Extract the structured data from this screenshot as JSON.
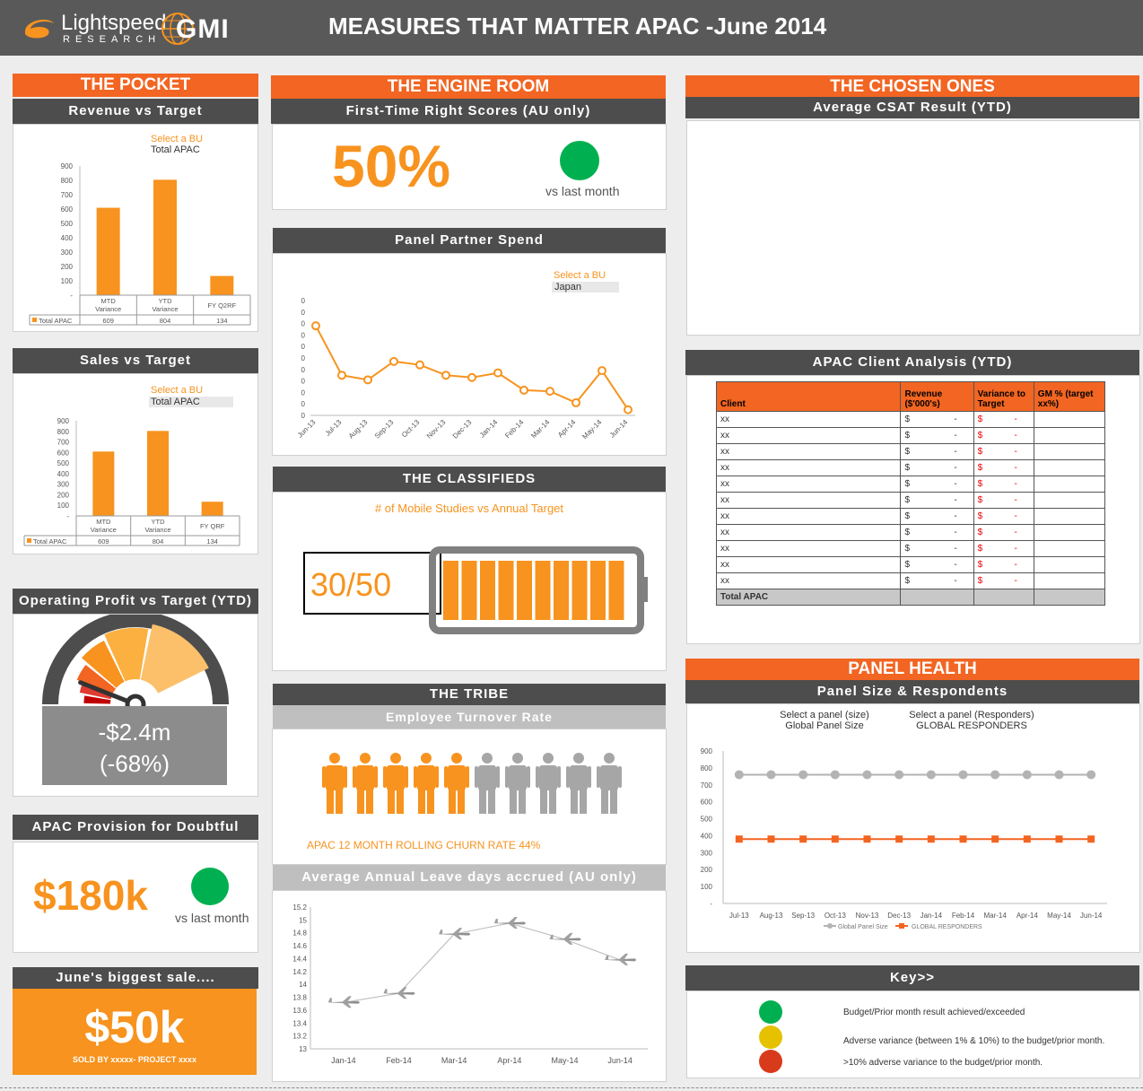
{
  "header": {
    "logo_name": "Lightspeed",
    "logo_sub": "RESEARCH",
    "logo_gmi": "GMI",
    "title": "MEASURES THAT MATTER APAC -June 2014"
  },
  "colors": {
    "orange": "#f7931e",
    "section": "#f26522",
    "dark": "#4d4d4d",
    "green": "#00b050",
    "yellow": "#e5c100",
    "red": "#d83b1c"
  },
  "pocket": {
    "section_title": "THE POCKET",
    "revenue": {
      "title": "Revenue vs Target",
      "select_label": "Select a BU",
      "select_value": "Total APAC",
      "legend": "Total APAC",
      "chart_data": {
        "type": "bar",
        "categories": [
          "MTD Variance",
          "YTD Variance",
          "FY Q2RF"
        ],
        "values": [
          609,
          804,
          134
        ],
        "ylim": [
          0,
          900
        ],
        "yticks": [
          "900",
          "800",
          "700",
          "600",
          "500",
          "400",
          "300",
          "200",
          "100",
          "-"
        ]
      }
    },
    "sales": {
      "title": "Sales vs Target",
      "select_label": "Select a BU",
      "select_value": "Total APAC",
      "legend": "Total APAC",
      "chart_data": {
        "type": "bar",
        "categories": [
          "MTD Variance",
          "YTD Variance",
          "FY QRF"
        ],
        "values": [
          609,
          804,
          134
        ],
        "ylim": [
          0,
          900
        ],
        "yticks": [
          "900",
          "800",
          "700",
          "600",
          "500",
          "400",
          "300",
          "200",
          "100",
          "-"
        ]
      }
    },
    "profit": {
      "title": "Operating Profit vs Target (YTD)",
      "value": "-$2.4m",
      "pct": "(-68%)",
      "gauge_level": 0.12
    },
    "provision": {
      "title": "APAC Provision for Doubtful",
      "value": "$180k",
      "status_label": "vs last month",
      "status": "green"
    },
    "biggest_sale": {
      "title": "June's biggest sale....",
      "value": "$50k",
      "sub": "SOLD BY xxxxx- PROJECT xxxx"
    }
  },
  "engine": {
    "section_title": "THE ENGINE ROOM",
    "ftr": {
      "title": "First-Time Right Scores (AU only)",
      "value": "50%",
      "status_label": "vs last month",
      "status": "green"
    },
    "spend": {
      "title": "Panel Partner Spend",
      "select_label": "Select a BU",
      "select_value": "Japan",
      "chart_data": {
        "type": "line",
        "categories": [
          "Jun-13",
          "Jul-13",
          "Aug-13",
          "Sep-13",
          "Oct-13",
          "Nov-13",
          "Dec-13",
          "Jan-14",
          "Feb-14",
          "Mar-14",
          "Apr-14",
          "May-14",
          "Jun-14"
        ],
        "values": [
          7.8,
          3.5,
          3.1,
          4.7,
          4.4,
          3.5,
          3.3,
          3.7,
          2.2,
          2.1,
          1.1,
          3.9,
          0.5
        ],
        "ylim": [
          0,
          10
        ],
        "yticks": [
          "0",
          "0",
          "0",
          "0",
          "0",
          "0",
          "0",
          "0",
          "0",
          "0",
          "0"
        ]
      }
    },
    "classifieds": {
      "title": "THE CLASSIFIEDS",
      "subtitle": "# of Mobile Studies vs Annual Target",
      "value": "30/50",
      "level": 0.6
    },
    "tribe": {
      "title": "THE TRIBE",
      "turnover_title": "Employee Turnover Rate",
      "churn_label": "APAC 12 MONTH ROLLING CHURN RATE 44%",
      "churn_level": 0.44,
      "people_count": 10,
      "leave_title": "Average Annual Leave days accrued (AU only)",
      "chart_data": {
        "type": "line",
        "categories": [
          "Jan-14",
          "Feb-14",
          "Mar-14",
          "Apr-14",
          "May-14",
          "Jun-14"
        ],
        "values": [
          13.72,
          13.86,
          14.78,
          14.95,
          14.7,
          14.38
        ],
        "ylim": [
          13,
          15.2
        ],
        "yticks": [
          "15.2",
          "15",
          "14.8",
          "14.6",
          "14.4",
          "14.2",
          "14",
          "13.8",
          "13.6",
          "13.4",
          "13.2",
          "13"
        ]
      }
    }
  },
  "chosen": {
    "section_title": "THE CHOSEN ONES",
    "csat_title": "Average CSAT Result (YTD)",
    "client_title": "APAC Client Analysis (YTD)",
    "table": {
      "headers": [
        "Client",
        "Revenue ($'000's)",
        "Variance to Target",
        "GM % (target xx%)"
      ],
      "rows": [
        [
          "xx",
          "$",
          "-",
          "$",
          "-"
        ],
        [
          "xx",
          "$",
          "-",
          "$",
          "-"
        ],
        [
          "xx",
          "$",
          "-",
          "$",
          "-"
        ],
        [
          "xx",
          "$",
          "-",
          "$",
          "-"
        ],
        [
          "xx",
          "$",
          "-",
          "$",
          "-"
        ],
        [
          "xx",
          "$",
          "-",
          "$",
          "-"
        ],
        [
          "xx",
          "$",
          "-",
          "$",
          "-"
        ],
        [
          "xx",
          "$",
          "-",
          "$",
          "-"
        ],
        [
          "xx",
          "$",
          "-",
          "$",
          "-"
        ],
        [
          "xx",
          "$",
          "-",
          "$",
          "-"
        ],
        [
          "xx",
          "$",
          "-",
          "$",
          "-"
        ]
      ],
      "total_label": "Total APAC"
    }
  },
  "panel_health": {
    "section_title": "PANEL HEALTH",
    "title": "Panel Size & Respondents",
    "select1_label": "Select a panel (size)",
    "select1_value": "Global Panel Size",
    "select2_label": "Select a panel (Responders)",
    "select2_value": "GLOBAL RESPONDERS",
    "chart_data": {
      "type": "line",
      "categories": [
        "Jul-13",
        "Aug-13",
        "Sep-13",
        "Oct-13",
        "Nov-13",
        "Dec-13",
        "Jan-14",
        "Feb-14",
        "Mar-14",
        "Apr-14",
        "May-14",
        "Jun-14"
      ],
      "series": [
        {
          "name": "Global Panel Size",
          "values": [
            760,
            760,
            760,
            760,
            760,
            760,
            760,
            760,
            760,
            760,
            760,
            760
          ]
        },
        {
          "name": "GLOBAL RESPONDERS",
          "values": [
            380,
            380,
            380,
            380,
            380,
            380,
            380,
            380,
            380,
            380,
            380,
            380
          ]
        }
      ],
      "ylim": [
        0,
        900
      ],
      "yticks": [
        "900",
        "800",
        "700",
        "600",
        "500",
        "400",
        "300",
        "200",
        "100",
        "-"
      ]
    }
  },
  "key": {
    "title": "Key>>",
    "items": [
      {
        "color": "#00b050",
        "text": "Budget/Prior month result achieved/exceeded"
      },
      {
        "color": "#e5c100",
        "text": "Adverse variance (between 1% & 10%) to the budget/prior month."
      },
      {
        "color": "#d83b1c",
        "text": ">10% adverse variance to the budget/prior month."
      }
    ]
  }
}
